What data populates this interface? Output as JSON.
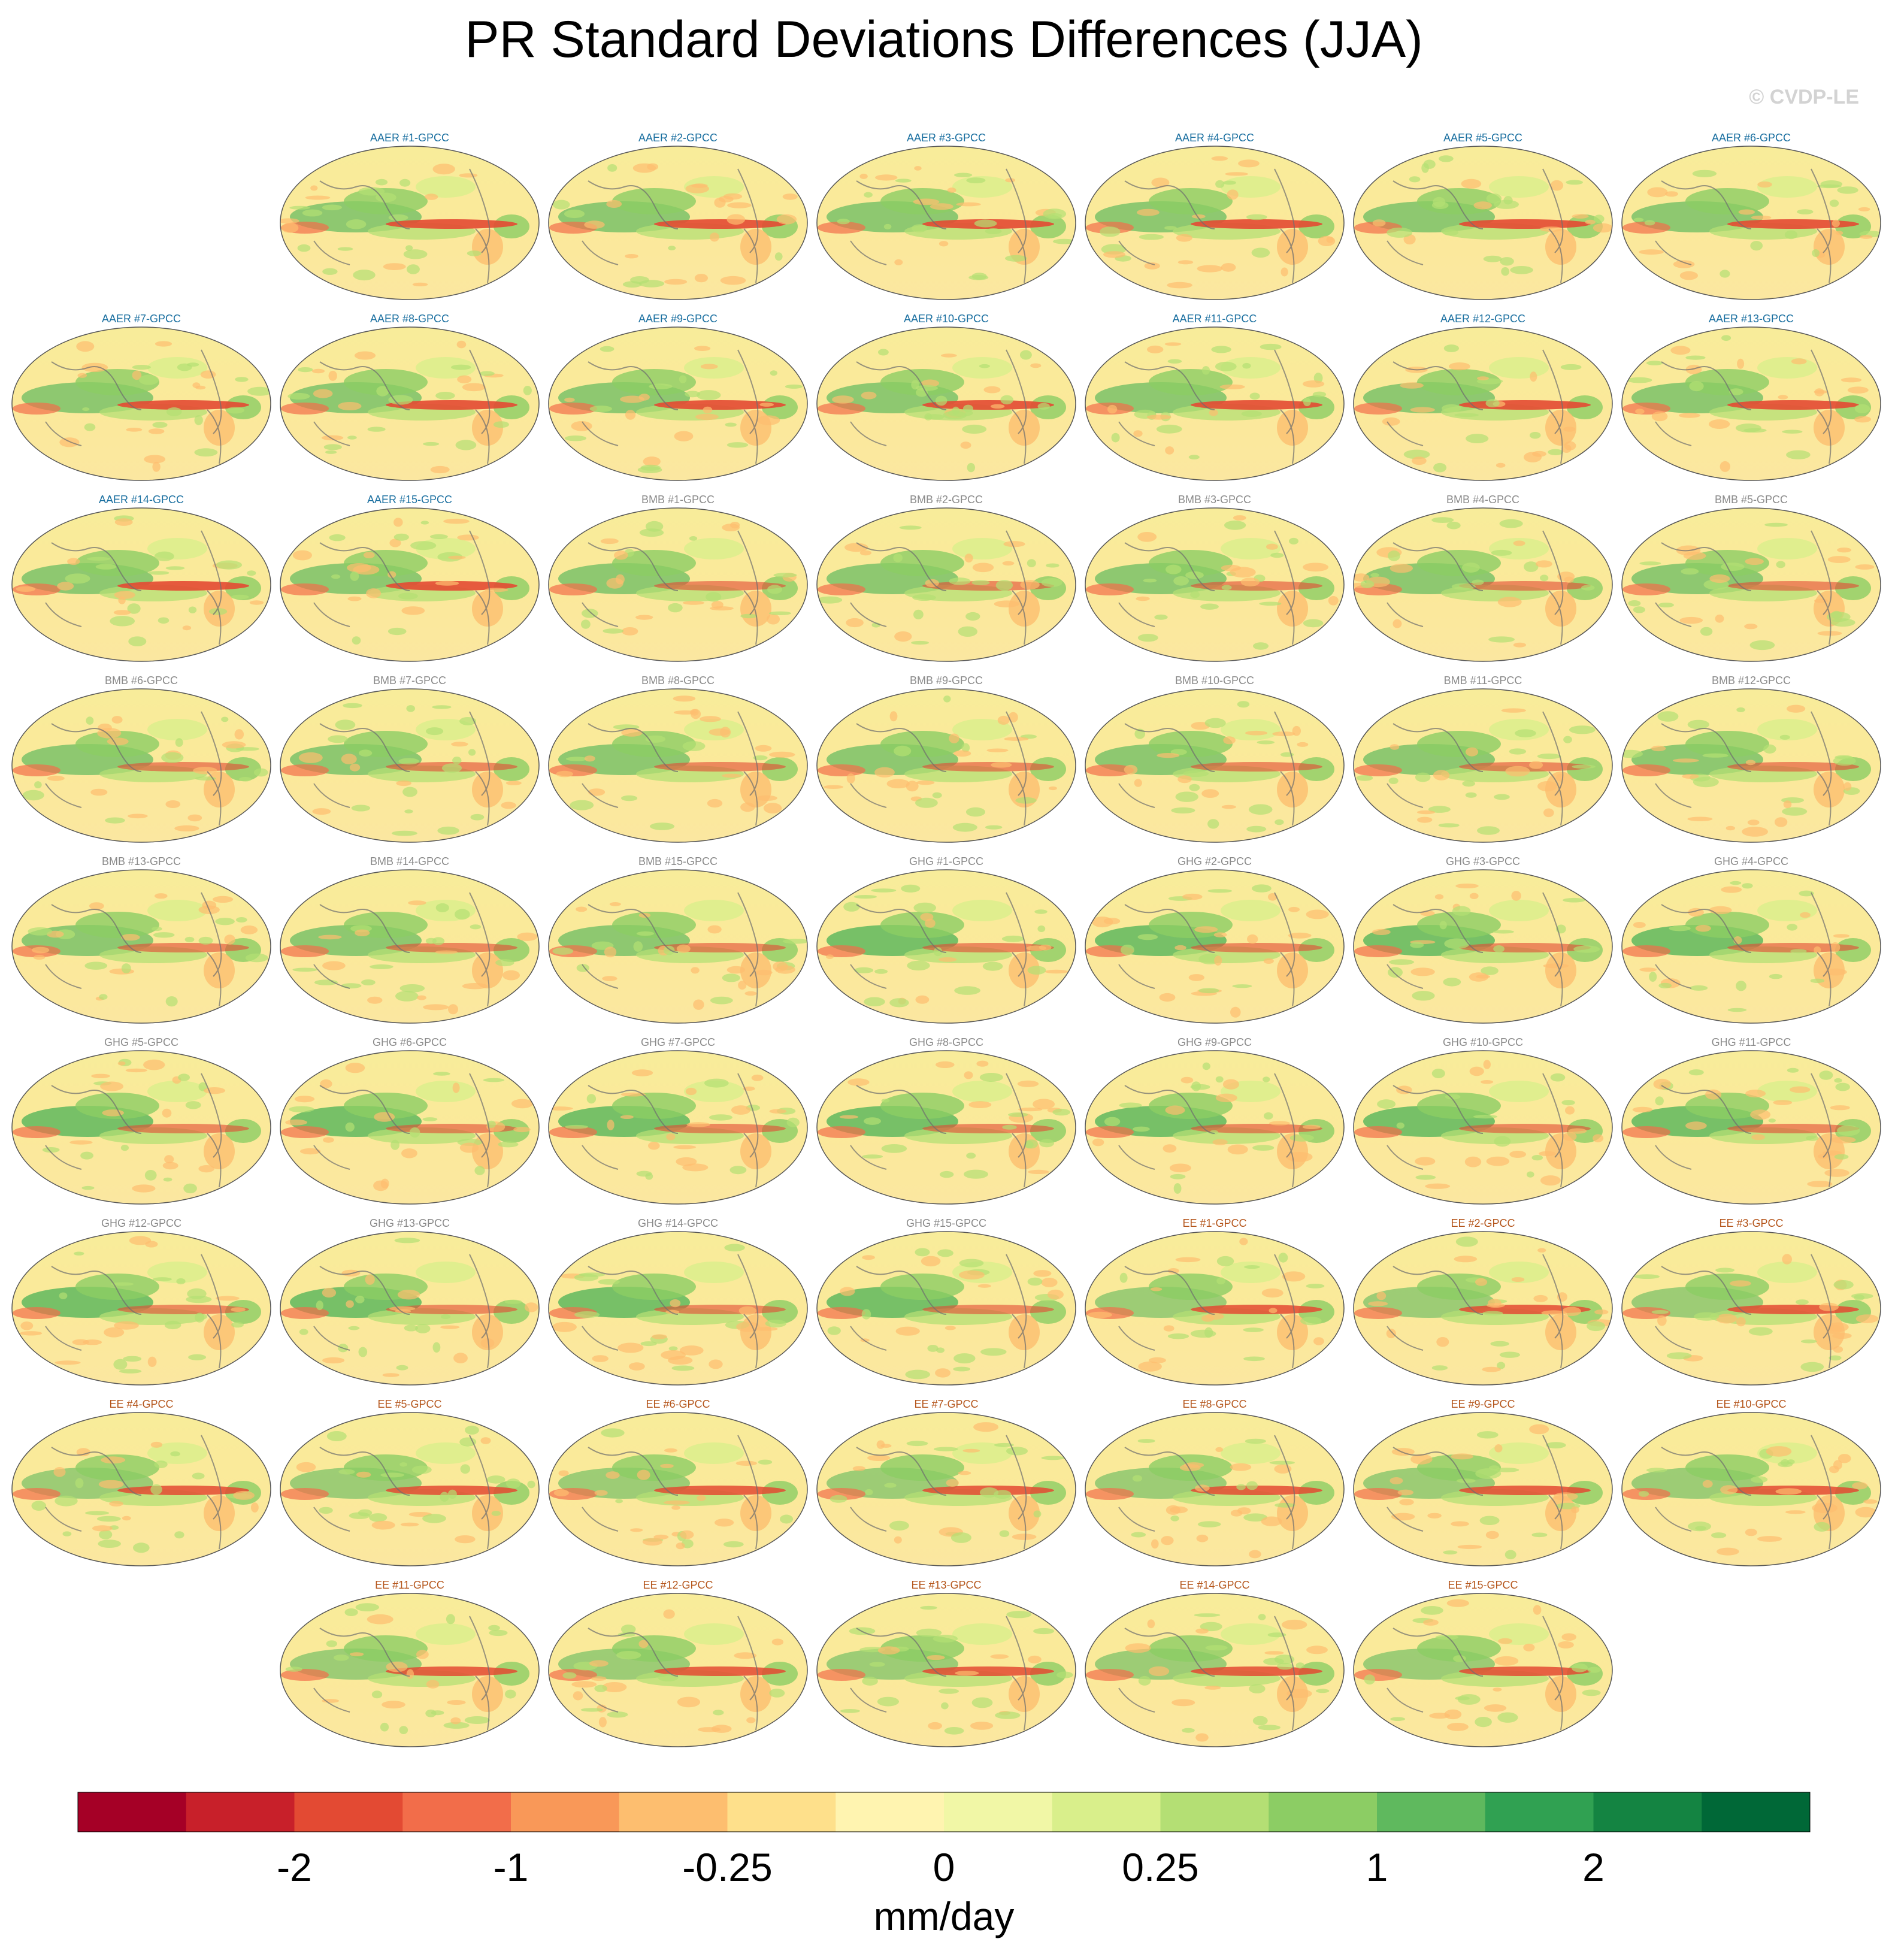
{
  "title": "PR Standard Deviations Differences (JJA)",
  "watermark": "© CVDP-LE",
  "chart_data": {
    "type": "map-panels",
    "title": "PR Standard Deviations Differences (JJA)",
    "variable": "PR standard deviation difference",
    "season": "JJA",
    "units": "mm/day",
    "projection": "Robinson-like global ellipse, Pacific-centered",
    "panels": [
      {
        "label": "AAER #1-GPCC",
        "group": "AAER"
      },
      {
        "label": "AAER #2-GPCC",
        "group": "AAER"
      },
      {
        "label": "AAER #3-GPCC",
        "group": "AAER"
      },
      {
        "label": "AAER #4-GPCC",
        "group": "AAER"
      },
      {
        "label": "AAER #5-GPCC",
        "group": "AAER"
      },
      {
        "label": "AAER #6-GPCC",
        "group": "AAER"
      },
      {
        "label": "AAER #7-GPCC",
        "group": "AAER"
      },
      {
        "label": "AAER #8-GPCC",
        "group": "AAER"
      },
      {
        "label": "AAER #9-GPCC",
        "group": "AAER"
      },
      {
        "label": "AAER #10-GPCC",
        "group": "AAER"
      },
      {
        "label": "AAER #11-GPCC",
        "group": "AAER"
      },
      {
        "label": "AAER #12-GPCC",
        "group": "AAER"
      },
      {
        "label": "AAER #13-GPCC",
        "group": "AAER"
      },
      {
        "label": "AAER #14-GPCC",
        "group": "AAER"
      },
      {
        "label": "AAER #15-GPCC",
        "group": "AAER"
      },
      {
        "label": "BMB #1-GPCC",
        "group": "BMB"
      },
      {
        "label": "BMB #2-GPCC",
        "group": "BMB"
      },
      {
        "label": "BMB #3-GPCC",
        "group": "BMB"
      },
      {
        "label": "BMB #4-GPCC",
        "group": "BMB"
      },
      {
        "label": "BMB #5-GPCC",
        "group": "BMB"
      },
      {
        "label": "BMB #6-GPCC",
        "group": "BMB"
      },
      {
        "label": "BMB #7-GPCC",
        "group": "BMB"
      },
      {
        "label": "BMB #8-GPCC",
        "group": "BMB"
      },
      {
        "label": "BMB #9-GPCC",
        "group": "BMB"
      },
      {
        "label": "BMB #10-GPCC",
        "group": "BMB"
      },
      {
        "label": "BMB #11-GPCC",
        "group": "BMB"
      },
      {
        "label": "BMB #12-GPCC",
        "group": "BMB"
      },
      {
        "label": "BMB #13-GPCC",
        "group": "BMB"
      },
      {
        "label": "BMB #14-GPCC",
        "group": "BMB"
      },
      {
        "label": "BMB #15-GPCC",
        "group": "BMB"
      },
      {
        "label": "GHG #1-GPCC",
        "group": "GHG"
      },
      {
        "label": "GHG #2-GPCC",
        "group": "GHG"
      },
      {
        "label": "GHG #3-GPCC",
        "group": "GHG"
      },
      {
        "label": "GHG #4-GPCC",
        "group": "GHG"
      },
      {
        "label": "GHG #5-GPCC",
        "group": "GHG"
      },
      {
        "label": "GHG #6-GPCC",
        "group": "GHG"
      },
      {
        "label": "GHG #7-GPCC",
        "group": "GHG"
      },
      {
        "label": "GHG #8-GPCC",
        "group": "GHG"
      },
      {
        "label": "GHG #9-GPCC",
        "group": "GHG"
      },
      {
        "label": "GHG #10-GPCC",
        "group": "GHG"
      },
      {
        "label": "GHG #11-GPCC",
        "group": "GHG"
      },
      {
        "label": "GHG #12-GPCC",
        "group": "GHG"
      },
      {
        "label": "GHG #13-GPCC",
        "group": "GHG"
      },
      {
        "label": "GHG #14-GPCC",
        "group": "GHG"
      },
      {
        "label": "GHG #15-GPCC",
        "group": "GHG"
      },
      {
        "label": "EE #1-GPCC",
        "group": "EE"
      },
      {
        "label": "EE #2-GPCC",
        "group": "EE"
      },
      {
        "label": "EE #3-GPCC",
        "group": "EE"
      },
      {
        "label": "EE #4-GPCC",
        "group": "EE"
      },
      {
        "label": "EE #5-GPCC",
        "group": "EE"
      },
      {
        "label": "EE #6-GPCC",
        "group": "EE"
      },
      {
        "label": "EE #7-GPCC",
        "group": "EE"
      },
      {
        "label": "EE #8-GPCC",
        "group": "EE"
      },
      {
        "label": "EE #9-GPCC",
        "group": "EE"
      },
      {
        "label": "EE #10-GPCC",
        "group": "EE"
      },
      {
        "label": "EE #11-GPCC",
        "group": "EE"
      },
      {
        "label": "EE #12-GPCC",
        "group": "EE"
      },
      {
        "label": "EE #13-GPCC",
        "group": "EE"
      },
      {
        "label": "EE #14-GPCC",
        "group": "EE"
      },
      {
        "label": "EE #15-GPCC",
        "group": "EE"
      }
    ],
    "group_label_colors": {
      "AAER": "#1a6fa0",
      "BMB": "#8a8a8a",
      "GHG": "#8a8a8a",
      "EE": "#b5561c"
    },
    "colorbar": {
      "label": "mm/day",
      "colors": [
        "#a50026",
        "#c8202a",
        "#e34a33",
        "#f26d4a",
        "#f99858",
        "#fdbe6f",
        "#fee08b",
        "#fff4b0",
        "#f1f7a6",
        "#d9ef8b",
        "#b4df74",
        "#8ccd64",
        "#5fb95e",
        "#30a152",
        "#148442",
        "#006837"
      ],
      "tick_labels": [
        "-2",
        "-1",
        "-0.25",
        "0",
        "0.25",
        "1",
        "2"
      ],
      "tick_positions_in_bins": [
        2,
        4,
        6,
        8,
        10,
        12,
        14
      ]
    }
  }
}
